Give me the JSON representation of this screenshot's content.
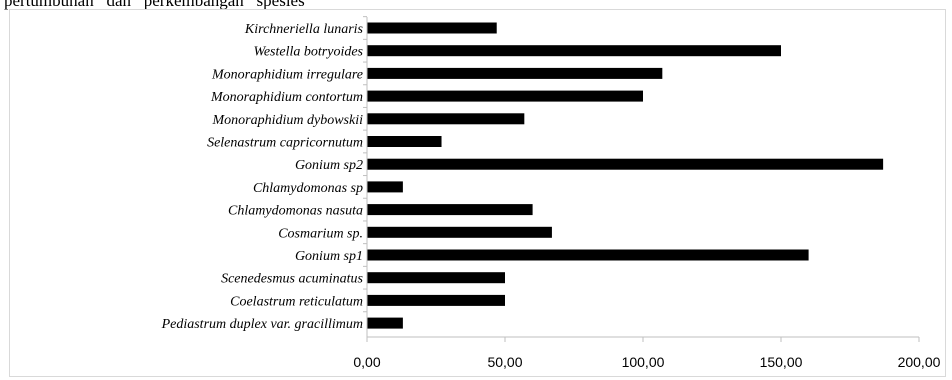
{
  "page_text": "pertumbuhan   dan   perkembangan   spesies",
  "chart_data": {
    "type": "bar",
    "orientation": "horizontal",
    "categories": [
      "Kirchneriella lunaris",
      "Westella botryoides",
      "Monoraphidium irregulare",
      "Monoraphidium contortum",
      "Monoraphidium dybowskii",
      "Selenastrum capricornutum",
      "Gonium sp2",
      "Chlamydomonas sp",
      "Chlamydomonas nasuta",
      "Cosmarium sp.",
      "Gonium sp1",
      "Scenedesmus acuminatus",
      "Coelastrum reticulatum",
      "Pediastrum duplex var. gracillimum"
    ],
    "values": [
      47,
      150,
      107,
      100,
      57,
      27,
      187,
      13,
      60,
      67,
      160,
      50,
      50,
      13
    ],
    "xlim": [
      0,
      200
    ],
    "xticks": [
      0,
      50,
      100,
      150,
      200
    ],
    "xtick_labels": [
      "0,00",
      "50,00",
      "100,00",
      "150,00",
      "200,00"
    ],
    "title": "",
    "xlabel": "",
    "ylabel": "",
    "bar_color": "#000000",
    "axis_color": "#bfbfbf",
    "grid": false,
    "legend": "none"
  }
}
